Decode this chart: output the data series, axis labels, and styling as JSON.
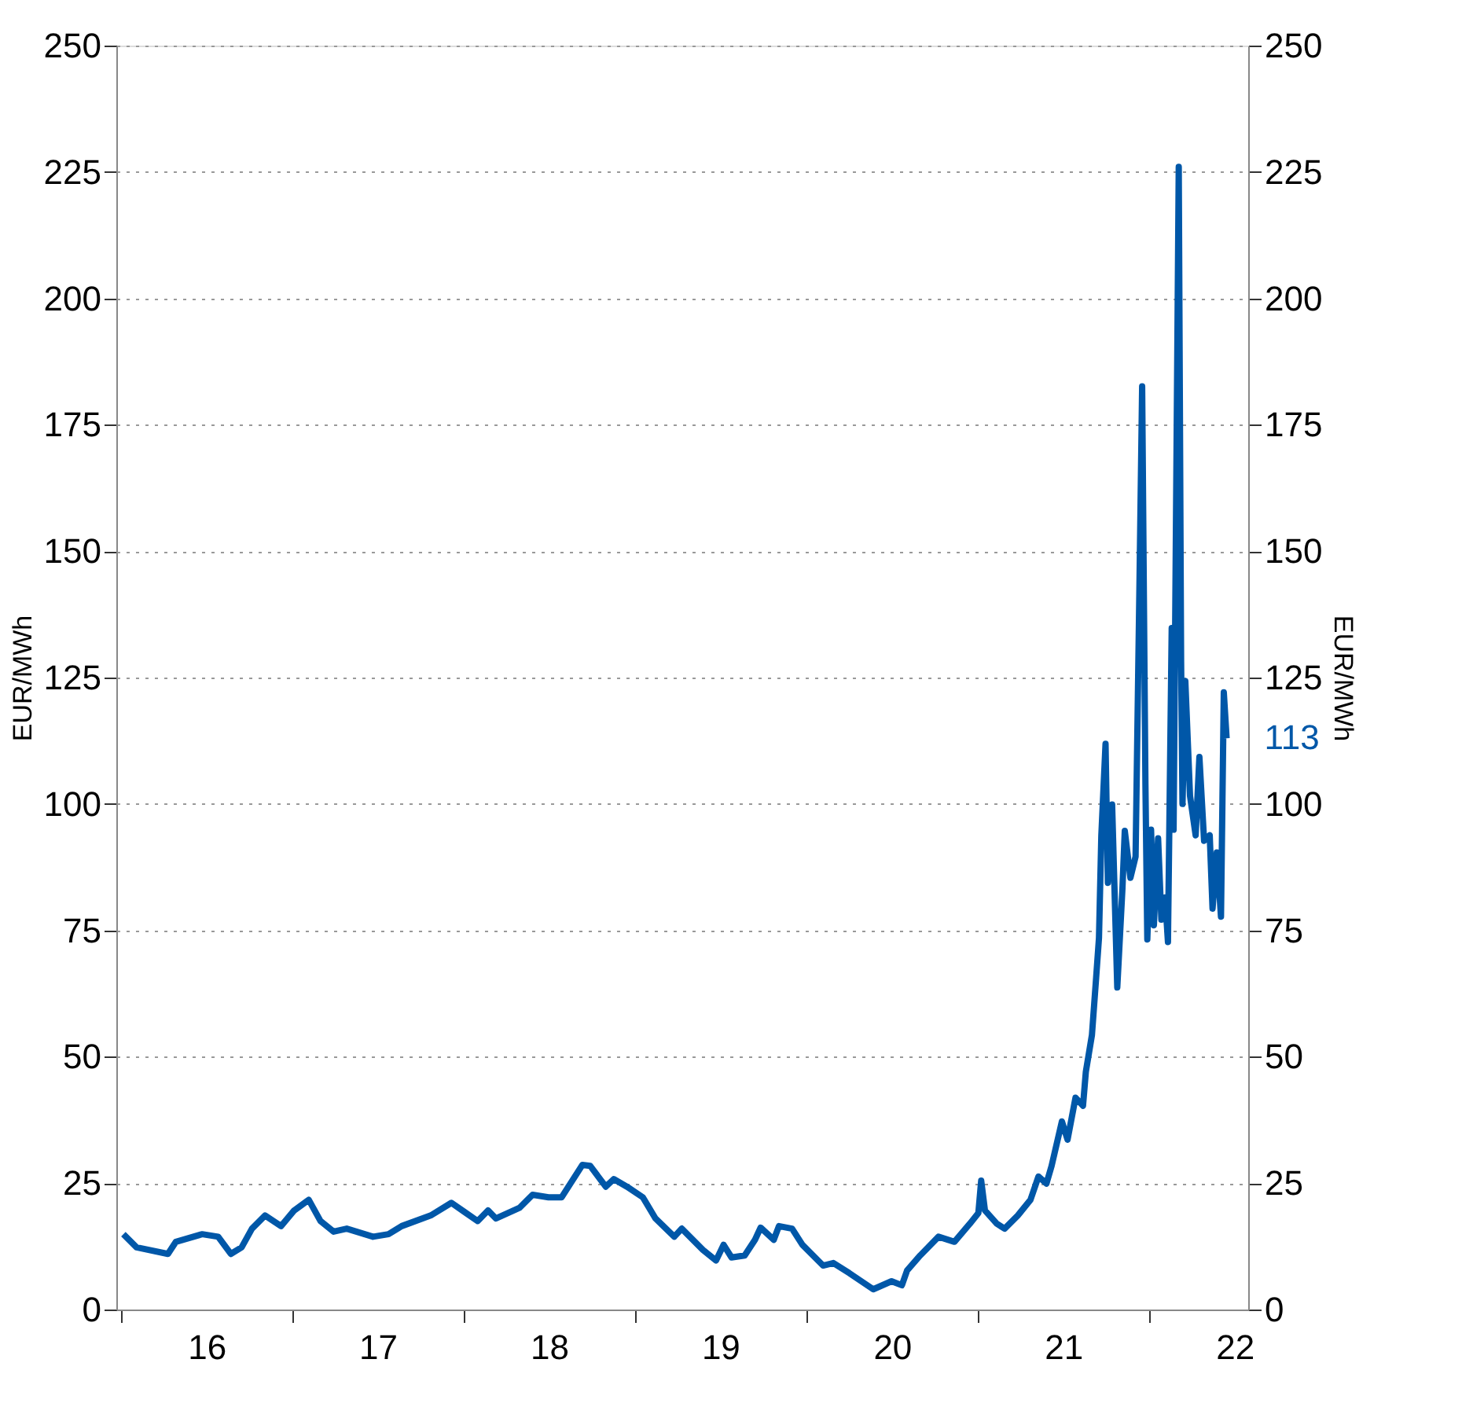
{
  "chart_data": {
    "type": "line",
    "ylabel": "EUR/MWh",
    "y2label": "EUR/MWh",
    "xlim": [
      "2015-12-22",
      "2022-07-30"
    ],
    "xticks": [
      {
        "value": "2016-01-01",
        "label": null
      },
      {
        "value": "2016-07-01",
        "label": "16"
      },
      {
        "value": "2017-01-01",
        "label": null
      },
      {
        "value": "2017-07-01",
        "label": "17"
      },
      {
        "value": "2018-01-01",
        "label": null
      },
      {
        "value": "2018-07-01",
        "label": "18"
      },
      {
        "value": "2019-01-01",
        "label": null
      },
      {
        "value": "2019-07-01",
        "label": "19"
      },
      {
        "value": "2020-01-01",
        "label": null
      },
      {
        "value": "2020-07-01",
        "label": "20"
      },
      {
        "value": "2021-01-01",
        "label": null
      },
      {
        "value": "2021-07-01",
        "label": "21"
      },
      {
        "value": "2022-01-01",
        "label": null
      },
      {
        "value": "2022-07-01",
        "label": "22"
      }
    ],
    "ylim": [
      0,
      250
    ],
    "yticks": [
      0,
      25,
      50,
      75,
      100,
      125,
      150,
      175,
      200,
      225,
      250
    ],
    "y2lim": [
      0,
      250
    ],
    "y2ticks": [
      0,
      25,
      50,
      75,
      100,
      125,
      150,
      175,
      200,
      225,
      250
    ],
    "grid": "y",
    "marker": "none",
    "line_style": "solid",
    "annotations": [
      {
        "text": "113",
        "x": "2022-06-14",
        "y": 113
      }
    ],
    "series": [
      {
        "color": "#0057a8",
        "x": [
          "2016-01-06",
          "2016-02-03",
          "2016-04-10",
          "2016-04-27",
          "2016-06-22",
          "2016-07-26",
          "2016-08-22",
          "2016-09-14",
          "2016-10-06",
          "2016-11-03",
          "2016-12-07",
          "2017-01-04",
          "2017-02-04",
          "2017-03-01",
          "2017-03-29",
          "2017-04-26",
          "2017-06-21",
          "2017-07-24",
          "2017-08-21",
          "2017-10-22",
          "2017-12-05",
          "2018-01-02",
          "2018-01-30",
          "2018-02-21",
          "2018-03-10",
          "2018-04-29",
          "2018-05-27",
          "2018-06-30",
          "2018-07-28",
          "2018-09-10",
          "2018-09-27",
          "2018-10-30",
          "2018-11-16",
          "2018-12-14",
          "2019-01-17",
          "2019-02-13",
          "2019-03-25",
          "2019-04-10",
          "2019-05-25",
          "2019-06-22",
          "2019-07-08",
          "2019-07-25",
          "2019-08-22",
          "2019-09-13",
          "2019-09-25",
          "2019-10-23",
          "2019-11-03",
          "2019-12-01",
          "2019-12-23",
          "2020-02-05",
          "2020-02-27",
          "2020-04-01",
          "2020-05-22",
          "2020-06-30",
          "2020-07-22",
          "2020-08-02",
          "2020-08-30",
          "2020-10-08",
          "2020-11-11",
          "2020-12-14",
          "2021-01-01",
          "2021-01-07",
          "2021-01-15",
          "2021-02-09",
          "2021-02-26",
          "2021-03-26",
          "2021-04-22",
          "2021-05-09",
          "2021-05-26",
          "2021-06-06",
          "2021-06-28",
          "2021-07-10",
          "2021-07-27",
          "2021-08-12",
          "2021-08-18",
          "2021-08-31",
          "2021-09-09",
          "2021-09-15",
          "2021-09-20",
          "2021-09-29",
          "2021-10-04",
          "2021-10-13",
          "2021-10-24",
          "2021-11-04",
          "2021-11-09",
          "2021-11-21",
          "2021-12-02",
          "2021-12-10",
          "2021-12-16",
          "2021-12-23",
          "2021-12-27",
          "2022-01-04",
          "2022-01-10",
          "2022-01-19",
          "2022-01-26",
          "2022-02-03",
          "2022-02-09",
          "2022-02-17",
          "2022-02-21",
          "2022-03-04",
          "2022-03-09",
          "2022-03-12",
          "2022-03-18",
          "2022-03-28",
          "2022-04-09",
          "2022-04-17",
          "2022-04-27",
          "2022-05-09",
          "2022-05-15",
          "2022-05-24",
          "2022-06-02",
          "2022-06-08",
          "2022-06-14"
        ],
        "values": [
          14.9,
          12.3,
          11.0,
          13.4,
          14.9,
          14.4,
          11.0,
          12.3,
          16.0,
          18.6,
          16.5,
          19.6,
          21.7,
          17.5,
          15.4,
          16.0,
          14.4,
          14.9,
          16.5,
          18.6,
          21.1,
          19.3,
          17.5,
          19.6,
          18.0,
          20.1,
          22.7,
          22.2,
          22.2,
          28.6,
          28.4,
          24.3,
          25.8,
          24.3,
          22.2,
          18.0,
          14.4,
          16.0,
          11.8,
          9.7,
          12.8,
          10.3,
          10.7,
          13.8,
          16.2,
          13.8,
          16.5,
          16.0,
          12.8,
          8.7,
          9.2,
          7.2,
          4.0,
          5.6,
          4.8,
          7.7,
          10.7,
          14.4,
          13.4,
          17.0,
          19.1,
          25.5,
          19.6,
          17.0,
          16.0,
          18.6,
          21.7,
          26.3,
          24.9,
          28.4,
          37.2,
          33.6,
          41.9,
          40.3,
          47.0,
          54.3,
          65.7,
          73.5,
          93.7,
          111.9,
          84.4,
          99.9,
          63.7,
          83.3,
          94.7,
          85.4,
          89.6,
          141.5,
          182.6,
          103.8,
          73.2,
          94.9,
          76.0,
          93.2,
          77.1,
          81.5,
          72.7,
          134.8,
          94.9,
          226,
          128.2,
          100,
          124.3,
          101.6,
          93.8,
          109.3,
          92.7,
          93.8,
          79.3,
          90.4,
          77.7,
          122.1,
          113
        ]
      }
    ]
  }
}
